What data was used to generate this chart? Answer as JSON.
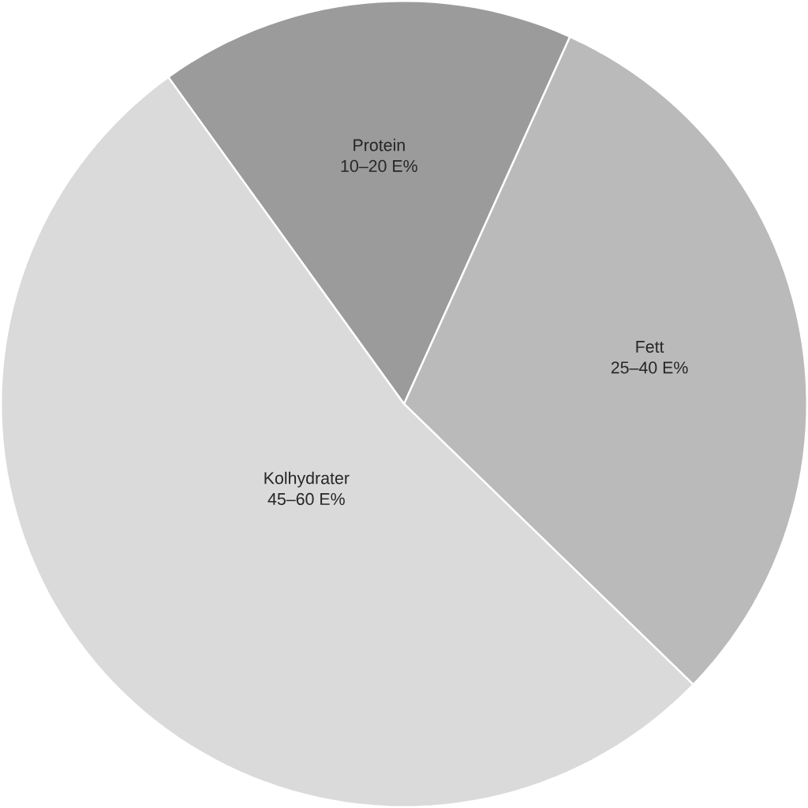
{
  "chart_data": {
    "type": "pie",
    "categories": [
      "Protein",
      "Fett",
      "Kolhydrater"
    ],
    "values": [
      16.7,
      30.5,
      52.8
    ],
    "annotations": [
      "10–20 E%",
      "25–40 E%",
      "45–60 E%"
    ],
    "colors": [
      "#9b9b9b",
      "#bababa",
      "#dadada"
    ]
  }
}
